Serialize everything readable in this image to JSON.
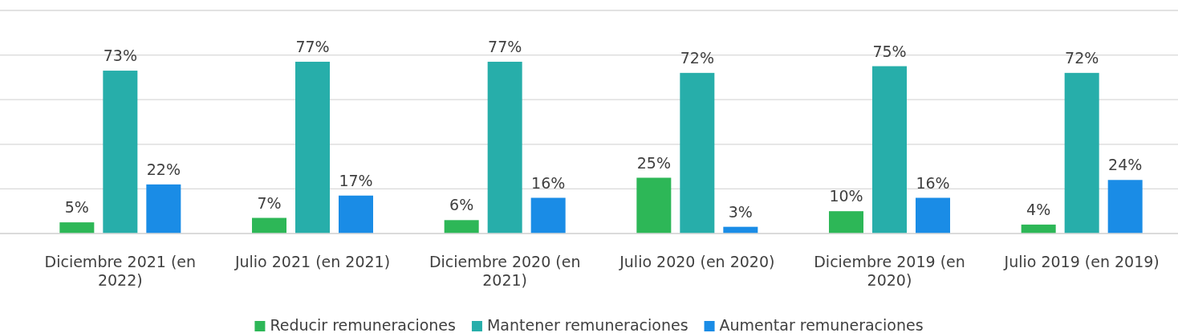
{
  "chart_data": {
    "type": "bar",
    "categories": [
      "Diciembre 2021 (en 2022)",
      "Julio 2021 (en 2021)",
      "Diciembre 2020 (en 2021)",
      "Julio 2020 (en 2020)",
      "Diciembre 2019 (en 2020)",
      "Julio 2019 (en 2019)"
    ],
    "series": [
      {
        "name": "Reducir remuneraciones",
        "color": "#2db757",
        "values": [
          5,
          7,
          6,
          25,
          10,
          4
        ],
        "value_labels": [
          "5%",
          "7%",
          "6%",
          "25%",
          "10%",
          "4%"
        ]
      },
      {
        "name": "Mantener remuneraciones",
        "color": "#27aeaa",
        "values": [
          73,
          77,
          77,
          72,
          75,
          72
        ],
        "value_labels": [
          "73%",
          "77%",
          "77%",
          "72%",
          "75%",
          "72%"
        ]
      },
      {
        "name": "Aumentar remuneraciones",
        "color": "#1a8ce6",
        "values": [
          22,
          17,
          16,
          3,
          16,
          24
        ],
        "value_labels": [
          "22%",
          "17%",
          "16%",
          "3%",
          "16%",
          "24%"
        ]
      }
    ],
    "ylim": [
      0,
      100
    ],
    "yticks": [
      {
        "value": 0,
        "label": null
      },
      {
        "value": 20,
        "label": null
      },
      {
        "value": 40,
        "label": null
      },
      {
        "value": 60,
        "label": null
      },
      {
        "value": 80,
        "label": null
      },
      {
        "value": 100,
        "label": null
      }
    ],
    "tick_labels": "x",
    "grid": "y",
    "legend": "bottom"
  }
}
